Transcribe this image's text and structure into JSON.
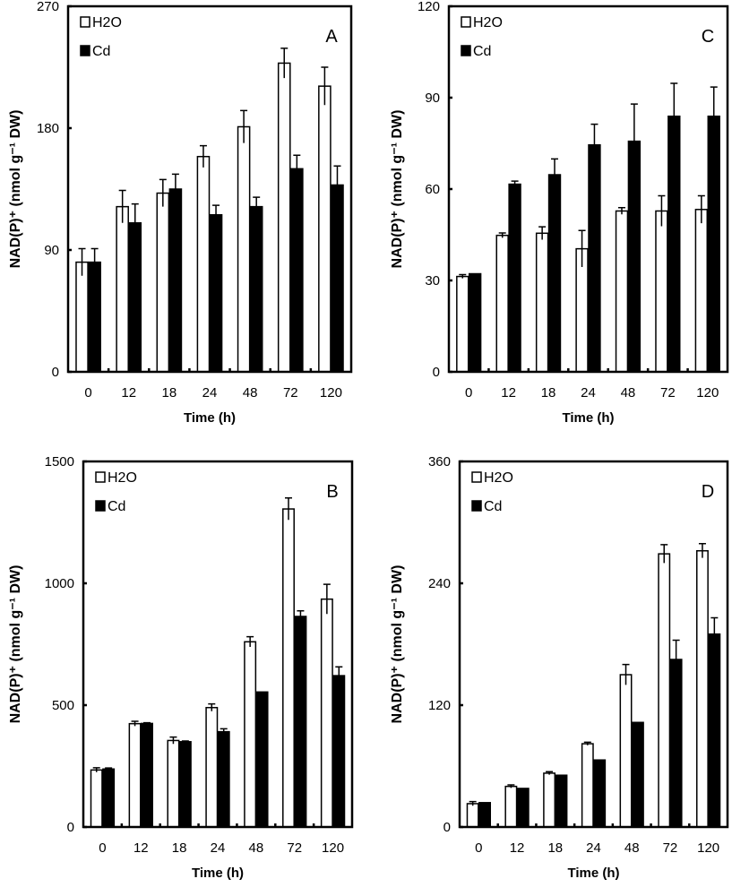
{
  "chart_data": [
    {
      "type": "bar",
      "panel_label": "A",
      "title": "",
      "xlabel": "Time (h)",
      "ylabel": "NAD(P)⁺ (nmol g⁻¹ DW)",
      "ylim": [
        0,
        270
      ],
      "yticks": [
        0,
        90,
        180,
        270
      ],
      "categories": [
        "0",
        "12",
        "18",
        "24",
        "48",
        "72",
        "120"
      ],
      "legend_position": "top-left",
      "series": [
        {
          "name": "H2O",
          "fill": "#ffffff",
          "values": [
            81,
            122,
            132,
            159,
            181,
            228,
            211
          ],
          "errors": [
            10,
            12,
            10,
            8,
            12,
            11,
            14
          ]
        },
        {
          "name": "Cd",
          "fill": "#000000",
          "values": [
            81,
            110,
            135,
            116,
            122,
            150,
            138
          ],
          "errors": [
            10,
            14,
            11,
            7,
            7,
            10,
            14
          ]
        }
      ]
    },
    {
      "type": "bar",
      "panel_label": "C",
      "title": "",
      "xlabel": "Time (h)",
      "ylabel": "NAD(P)⁺ (nmol g⁻¹ DW)",
      "ylim": [
        0,
        120
      ],
      "yticks": [
        0,
        30,
        60,
        90,
        120
      ],
      "categories": [
        "0",
        "12",
        "18",
        "24",
        "48",
        "72",
        "120"
      ],
      "legend_position": "top-left",
      "series": [
        {
          "name": "H2O",
          "fill": "#ffffff",
          "values": [
            31.3,
            44.8,
            45.5,
            40.4,
            52.8,
            52.8,
            53.3
          ],
          "errors": [
            0.6,
            0.8,
            2.1,
            6.0,
            1.1,
            5.0,
            4.5
          ]
        },
        {
          "name": "Cd",
          "fill": "#000000",
          "values": [
            32.2,
            61.6,
            64.7,
            74.5,
            75.7,
            83.9,
            83.9
          ],
          "errors": [
            0,
            1.0,
            5.2,
            6.8,
            12.2,
            10.8,
            9.6
          ]
        }
      ]
    },
    {
      "type": "bar",
      "panel_label": "B",
      "title": "",
      "xlabel": "Time (h)",
      "ylabel": "NAD(P)⁺ (nmol g⁻¹ DW)",
      "ylim": [
        0,
        1500
      ],
      "yticks": [
        0,
        500,
        1000,
        1500
      ],
      "categories": [
        "0",
        "12",
        "18",
        "24",
        "48",
        "72",
        "120"
      ],
      "legend_position": "top-left",
      "series": [
        {
          "name": "H2O",
          "fill": "#ffffff",
          "values": [
            234,
            424,
            355,
            490,
            760,
            1305,
            935
          ],
          "errors": [
            9,
            10,
            14,
            15,
            21,
            45,
            61
          ]
        },
        {
          "name": "Cd",
          "fill": "#000000",
          "values": [
            238,
            425,
            350,
            391,
            554,
            864,
            621
          ],
          "errors": [
            4,
            3,
            3,
            12,
            0,
            23,
            36
          ]
        }
      ]
    },
    {
      "type": "bar",
      "panel_label": "D",
      "title": "",
      "xlabel": "Time (h)",
      "ylabel": "NAD(P)⁺ (nmol g⁻¹ DW)",
      "ylim": [
        0,
        360
      ],
      "yticks": [
        0,
        120,
        240,
        360
      ],
      "categories": [
        "0",
        "12",
        "18",
        "24",
        "48",
        "72",
        "120"
      ],
      "legend_position": "top-left",
      "series": [
        {
          "name": "H2O",
          "fill": "#ffffff",
          "values": [
            23,
            40,
            53,
            82,
            150,
            269,
            272
          ],
          "errors": [
            2,
            1.5,
            1.5,
            1.5,
            10,
            9,
            7
          ]
        },
        {
          "name": "Cd",
          "fill": "#000000",
          "values": [
            24,
            38,
            51,
            66,
            103,
            165,
            190
          ],
          "errors": [
            0,
            0,
            0,
            0,
            0,
            19,
            16
          ]
        }
      ]
    }
  ]
}
